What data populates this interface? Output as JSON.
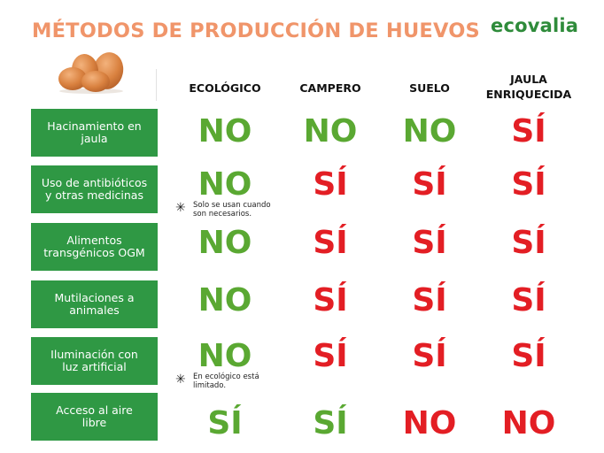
{
  "header": {
    "title": "MÉTODOS DE PRODUCCIÓN DE HUEVOS",
    "logo": "ecovalia"
  },
  "columns": [
    "ECOLÓGICO",
    "CAMPERO",
    "SUELO",
    "JAULA\nENRIQUECIDA"
  ],
  "rows": [
    {
      "label": "Hacinamiento en\njaula",
      "values": [
        "NO",
        "NO",
        "NO",
        "SÍ"
      ]
    },
    {
      "label": "Uso de antibióticos\ny otras medicinas",
      "values": [
        "NO",
        "SÍ",
        "SÍ",
        "SÍ"
      ],
      "note": "Solo se usan cuando\nson necesarios."
    },
    {
      "label": "Alimentos\ntransgénicos OGM",
      "values": [
        "NO",
        "SÍ",
        "SÍ",
        "SÍ"
      ]
    },
    {
      "label": "Mutilaciones a\nanimales",
      "values": [
        "NO",
        "SÍ",
        "SÍ",
        "SÍ"
      ]
    },
    {
      "label": "Iluminación con\nluz artificial",
      "values": [
        "NO",
        "SÍ",
        "SÍ",
        "SÍ"
      ],
      "note": "En ecológico está\nlimitado."
    },
    {
      "label": "Acceso al aire\nlibre",
      "values": [
        "SÍ",
        "SÍ",
        "NO",
        "NO"
      ]
    }
  ],
  "colors": {
    "title": "#f0956a",
    "label_bg": "#2f9844",
    "positive_green": "#5aa832",
    "negative_red": "#e31e24",
    "logo": "#2e8b3a"
  },
  "icons": {
    "eggs": "eggs-illustration",
    "note_marker": "asterisk-icon"
  }
}
